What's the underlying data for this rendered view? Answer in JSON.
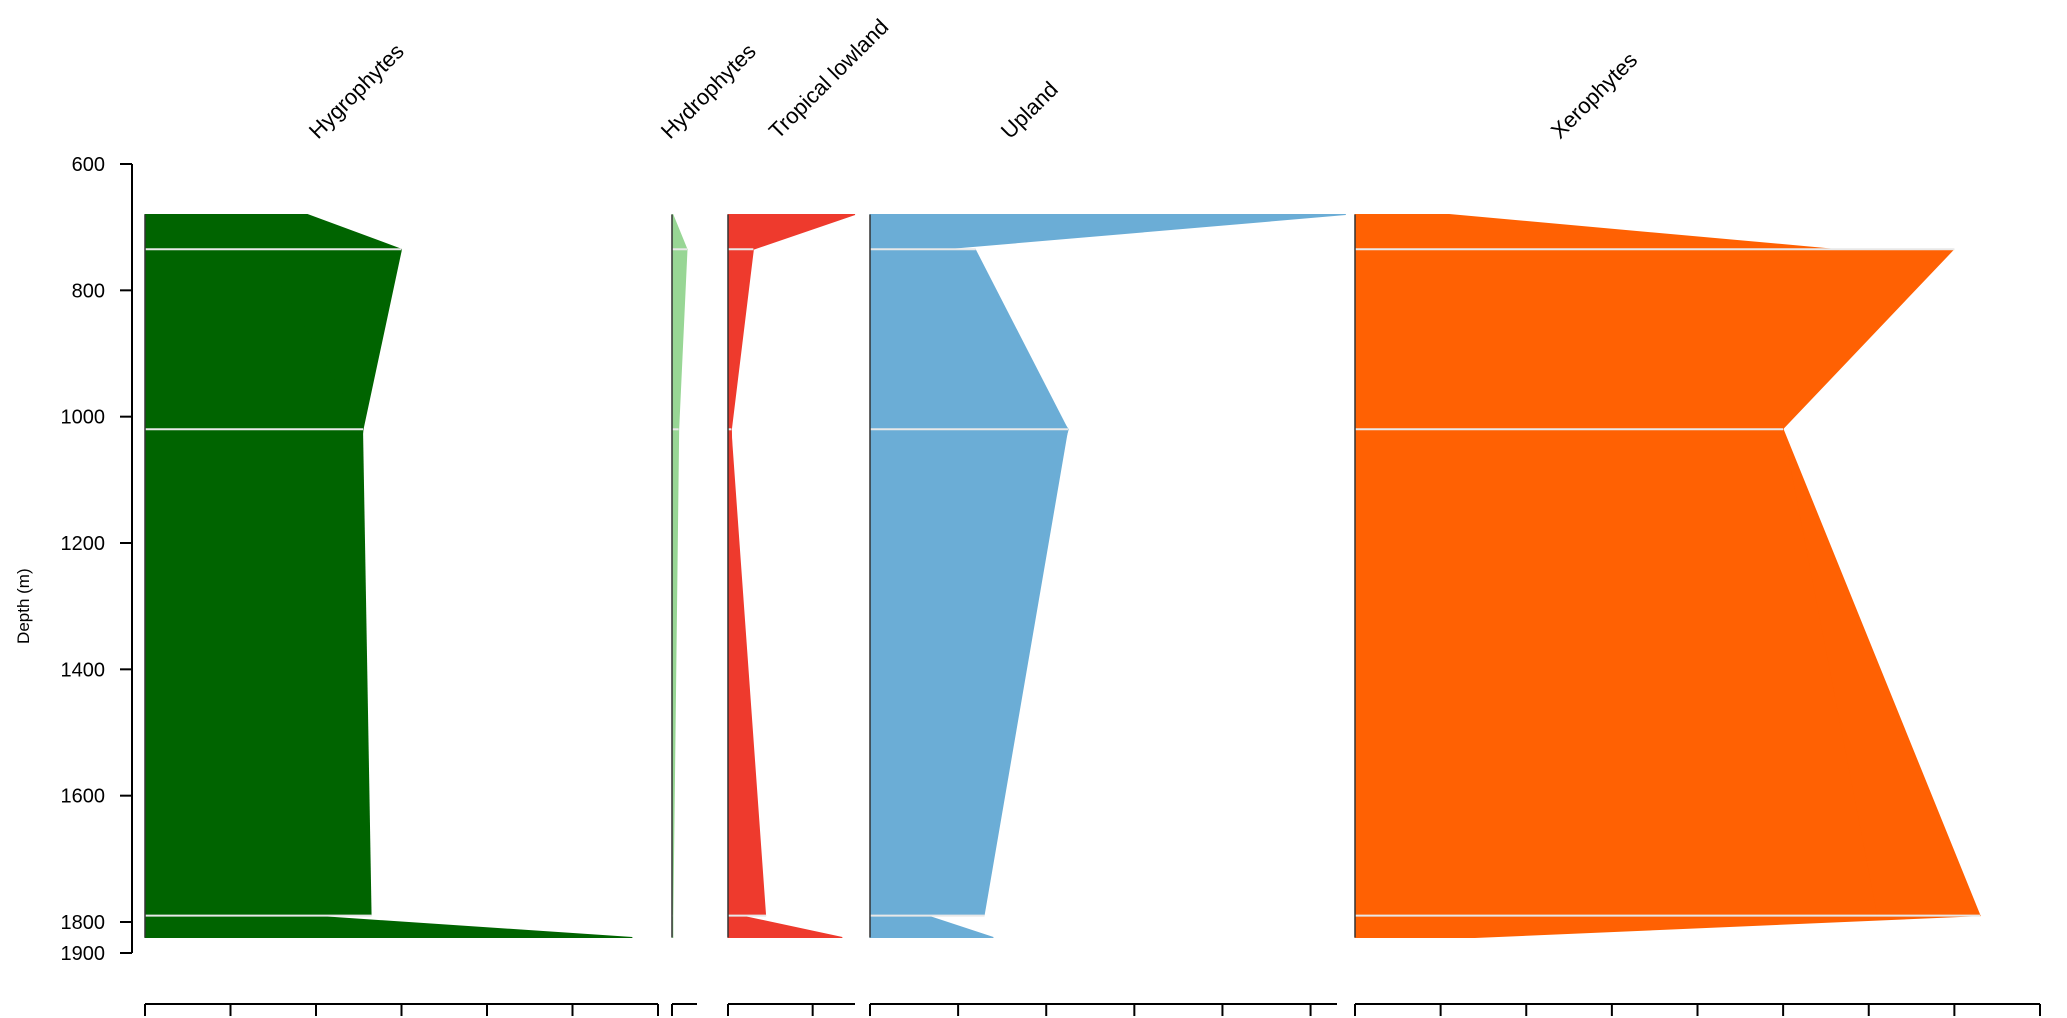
{
  "chart_data": {
    "type": "area",
    "ylabel": "Depth (m)",
    "y_ticks": [
      600,
      800,
      1000,
      1200,
      1400,
      1600,
      1800,
      1900
    ],
    "ylim": [
      600,
      1900
    ],
    "depths": [
      680,
      735,
      1020,
      1790,
      1850
    ],
    "series": [
      {
        "name": "Hygrophytes",
        "color": "#006400",
        "xlim": [
          0,
          60
        ],
        "x_ticks": [
          10,
          20,
          30,
          40,
          50,
          60
        ],
        "values": [
          19,
          30,
          25.5,
          19,
          57
        ],
        "secondary": [
          13.5,
          13.5,
          25.5,
          26.5,
          26.5
        ]
      },
      {
        "name": "Hydrophytes",
        "color": "#98d695",
        "xlim": [
          0,
          3
        ],
        "x_ticks": [
          0
        ],
        "values": [
          0.1,
          1.8,
          0.8,
          0.1,
          0.1
        ],
        "secondary": [
          1.1,
          1.1,
          0.8,
          0.1,
          0.1
        ]
      },
      {
        "name": "Tropical lowland",
        "color": "#ee3a2d",
        "xlim": [
          0,
          15
        ],
        "x_ticks": [
          10
        ],
        "values": [
          15,
          3,
          0.4,
          1.5,
          13.5
        ],
        "secondary": [
          0.4,
          0.4,
          0.4,
          4.5,
          4.5
        ]
      },
      {
        "name": "Upland",
        "color": "#6badd6",
        "xlim": [
          0,
          53
        ],
        "x_ticks": [
          10,
          20,
          30,
          40,
          50
        ],
        "values": [
          54,
          8,
          22.5,
          6.5,
          14
        ],
        "secondary": [
          12,
          12,
          22.5,
          13,
          13
        ]
      },
      {
        "name": "Xerophytes",
        "color": "#ff6103",
        "xlim": [
          0,
          80
        ],
        "x_ticks": [
          10,
          20,
          30,
          40,
          50,
          60,
          70,
          80
        ],
        "values": [
          11,
          56,
          50,
          73,
          14
        ],
        "secondary": [
          70,
          70,
          50,
          61,
          61
        ]
      }
    ]
  }
}
